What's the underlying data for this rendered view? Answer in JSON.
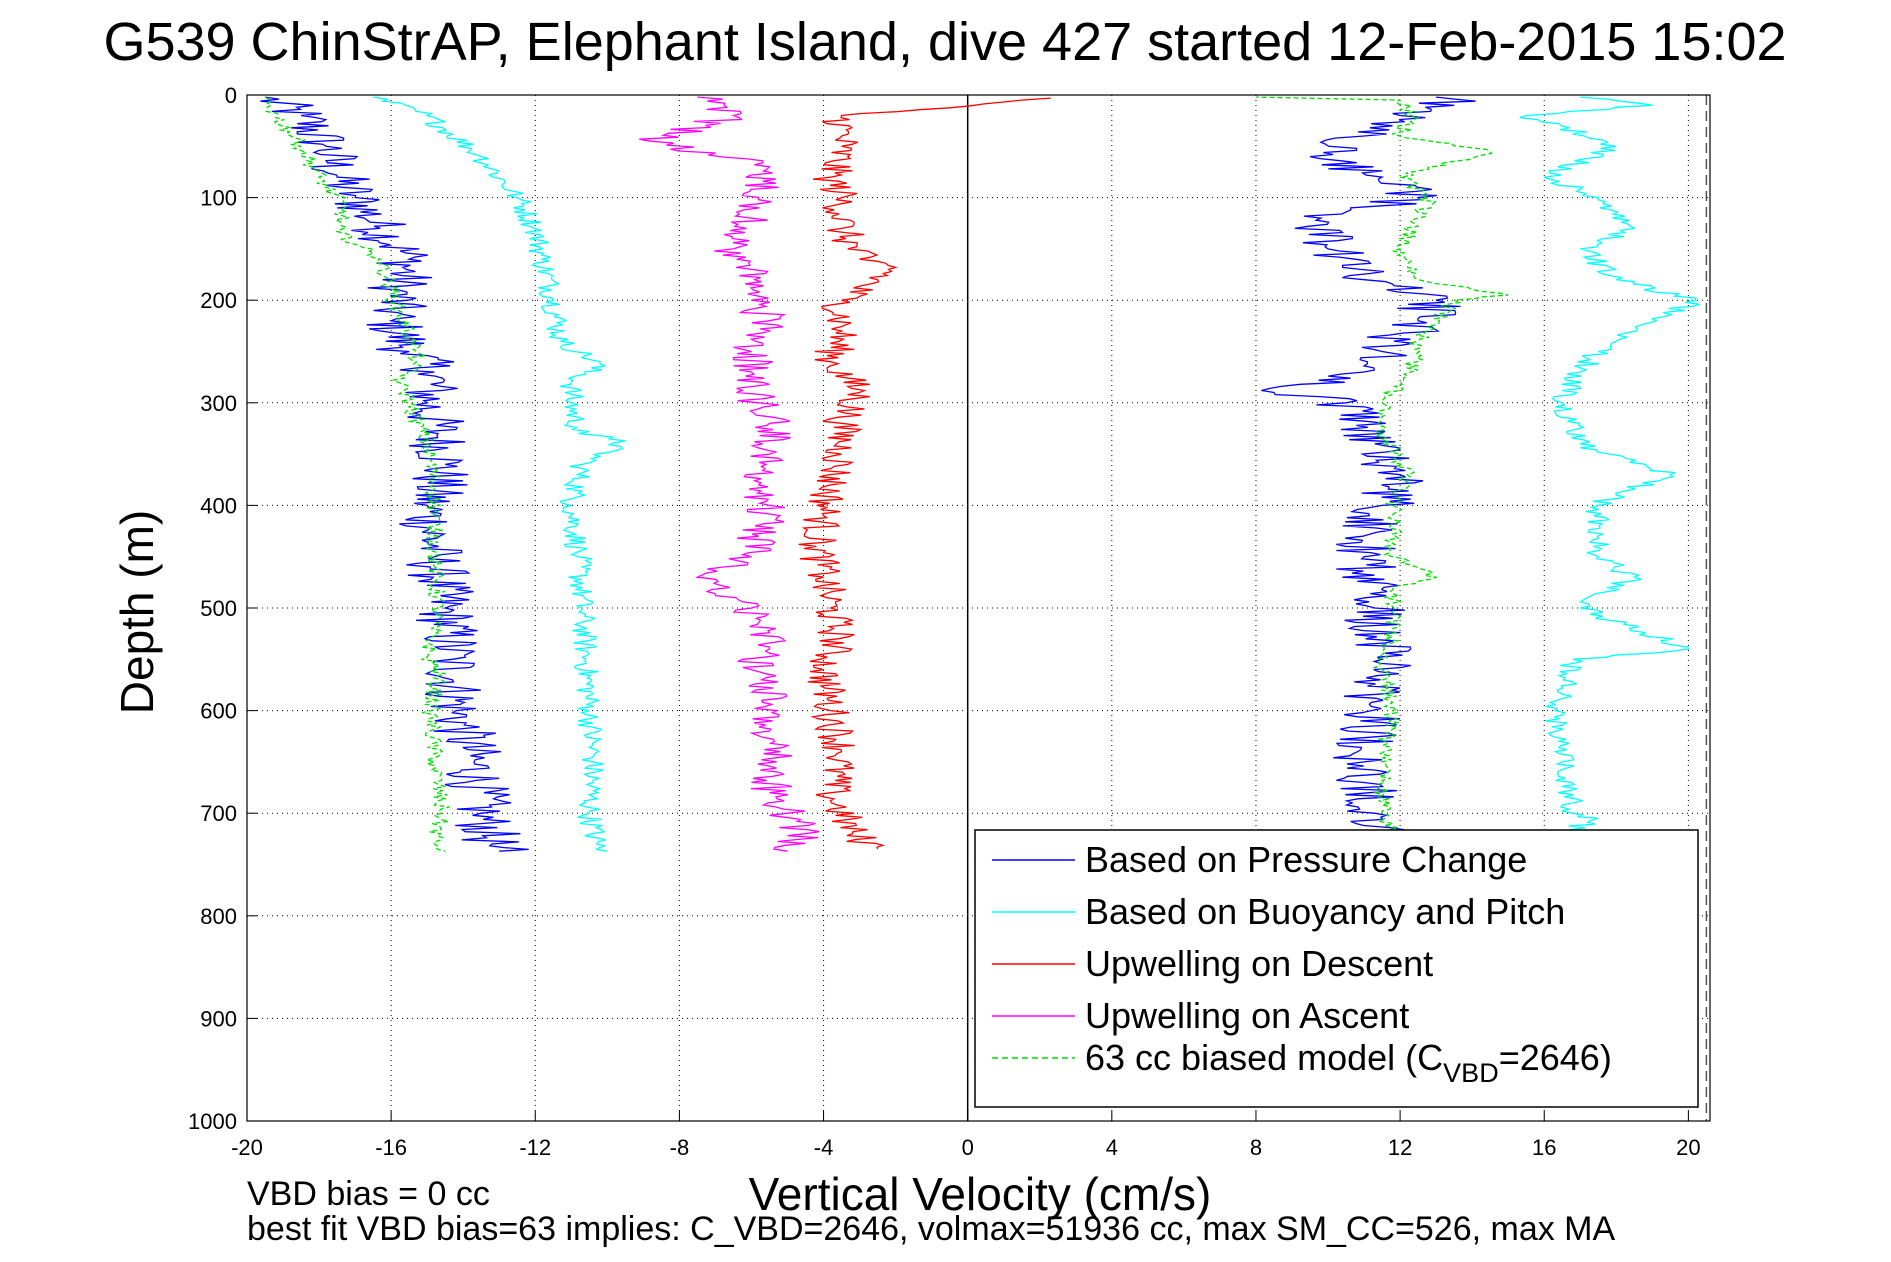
{
  "chart_data": {
    "type": "line",
    "title": "G539 ChinStrAP, Elephant Island, dive 427 started 12-Feb-2015 15:02",
    "xlabel": "Vertical Velocity (cm/s)",
    "ylabel": "Depth (m)",
    "xlim": [
      -20,
      20.6
    ],
    "ylim": [
      0,
      1000
    ],
    "y_reversed": true,
    "xticks": [
      "-20",
      "-16",
      "-12",
      "-8",
      "-4",
      "0",
      "4",
      "8",
      "12",
      "16",
      "20"
    ],
    "yticks": [
      "0",
      "100",
      "200",
      "300",
      "400",
      "500",
      "600",
      "700",
      "800",
      "900",
      "1000"
    ],
    "grid": true,
    "legend_position": "bottom-right",
    "reference_lines": [
      {
        "x": 0,
        "style": "solid"
      },
      {
        "x": 20.5,
        "style": "dashed"
      }
    ],
    "series": [
      {
        "name": "Based on Pressure Change",
        "color": "#0000ff",
        "style": "solid",
        "segments": [
          {
            "depth": [
              2,
              20,
              50,
              80,
              100,
              130,
              160,
              190,
              220,
              250,
              270,
              300,
              330,
              360,
              400,
              450,
              500,
              550,
              600,
              650,
              700,
              730,
              737
            ],
            "x": [
              -19.5,
              -18.5,
              -17.8,
              -17.5,
              -17.0,
              -16.3,
              -15.5,
              -15.8,
              -16.0,
              -15.5,
              -14.8,
              -15.0,
              -14.7,
              -14.5,
              -15.0,
              -14.8,
              -14.5,
              -14.3,
              -14.2,
              -13.7,
              -13.5,
              -13.2,
              -13.0
            ]
          },
          {
            "depth": [
              737,
              720,
              700,
              650,
              600,
              550,
              500,
              450,
              400,
              370,
              340,
              300,
              290,
              270,
              250,
              220,
              200,
              180,
              150,
              120,
              100,
              80,
              60,
              40,
              20,
              10,
              2
            ],
            "x": [
              11.5,
              11.5,
              11.3,
              11.0,
              11.2,
              11.5,
              11.3,
              11.0,
              11.5,
              12.0,
              11.3,
              10.5,
              8.5,
              11.0,
              11.5,
              12.5,
              13.0,
              11.0,
              10.0,
              9.8,
              12.5,
              11.5,
              9.5,
              11.0,
              12.0,
              13.5,
              13.0
            ]
          }
        ]
      },
      {
        "name": "Based on Buoyancy and Pitch",
        "color": "#00ffff",
        "style": "solid",
        "segments": [
          {
            "depth": [
              2,
              20,
              60,
              100,
              130,
              160,
              200,
              240,
              262,
              280,
              300,
              330,
              337,
              360,
              400,
              450,
              500,
              550,
              600,
              650,
              700,
              730,
              737
            ],
            "x": [
              -16.5,
              -15.0,
              -13.5,
              -12.5,
              -12.0,
              -11.8,
              -11.5,
              -11.3,
              -10.2,
              -11.0,
              -11.0,
              -10.8,
              -9.5,
              -10.7,
              -11.0,
              -10.8,
              -10.7,
              -10.6,
              -10.5,
              -10.4,
              -10.5,
              -10.3,
              -10.0
            ]
          },
          {
            "depth": [
              737,
              720,
              705,
              700,
              650,
              600,
              550,
              540,
              500,
              470,
              450,
              400,
              390,
              370,
              340,
              300,
              270,
              250,
              200,
              180,
              150,
              130,
              100,
              80,
              50,
              20,
              10,
              2
            ],
            "x": [
              16.5,
              16.5,
              17.5,
              16.8,
              16.5,
              16.3,
              16.8,
              20.0,
              17.0,
              18.5,
              17.5,
              17.5,
              18.0,
              19.5,
              17.0,
              16.5,
              17.0,
              17.5,
              20.2,
              18.0,
              17.0,
              18.5,
              17.5,
              16.0,
              18.0,
              15.5,
              19.0,
              17.0
            ]
          }
        ]
      },
      {
        "name": "Upwelling on Descent",
        "color": "#ff0000",
        "style": "solid",
        "segments": [
          {
            "depth": [
              3,
              20,
              50,
              80,
              100,
              130,
              160,
              168,
              200,
              230,
              260,
              290,
              320,
              350,
              380,
              410,
              440,
              470,
              500,
              530,
              560,
              600,
              640,
              680,
              720,
              735
            ],
            "x": [
              2.3,
              -3.5,
              -3.5,
              -3.8,
              -3.5,
              -3.5,
              -3.0,
              -2.0,
              -3.5,
              -3.5,
              -3.8,
              -3.0,
              -3.5,
              -3.5,
              -3.8,
              -4.0,
              -4.2,
              -4.0,
              -3.8,
              -3.6,
              -4.0,
              -3.8,
              -3.5,
              -3.8,
              -3.2,
              -2.5
            ]
          }
        ]
      },
      {
        "name": "Upwelling on Ascent",
        "color": "#ff00ff",
        "style": "solid",
        "segments": [
          {
            "depth": [
              737,
              720,
              700,
              680,
              650,
              620,
              600,
              560,
              540,
              500,
              470,
              450,
              400,
              380,
              350,
              320,
              300,
              270,
              250,
              220,
              200,
              170,
              150,
              120,
              100,
              70,
              45,
              20,
              2
            ],
            "x": [
              -5.0,
              -4.5,
              -5.0,
              -5.5,
              -5.3,
              -5.5,
              -5.3,
              -6.0,
              -5.5,
              -6.0,
              -7.5,
              -6.0,
              -5.5,
              -5.8,
              -5.5,
              -5.5,
              -5.8,
              -6.0,
              -6.0,
              -5.5,
              -6.0,
              -6.0,
              -6.5,
              -6.0,
              -5.8,
              -5.5,
              -8.8,
              -6.5,
              -7.5
            ]
          }
        ]
      },
      {
        "name": "63 cc biased model (C_VBD=2646)",
        "color": "#00dd00",
        "style": "dashed",
        "segments": [
          {
            "depth": [
              2,
              20,
              50,
              80,
              110,
              133,
              160,
              190,
              210,
              250,
              260,
              280,
              295,
              300,
              340,
              380,
              420,
              460,
              500,
              548,
              560,
              600,
              650,
              700,
              730,
              737
            ],
            "x": [
              -19.5,
              -19.2,
              -18.5,
              -18.0,
              -17.3,
              -17.5,
              -16.3,
              -16.0,
              -15.8,
              -15.3,
              -15.3,
              -15.8,
              -15.5,
              -15.5,
              -15.0,
              -14.8,
              -14.8,
              -14.8,
              -14.7,
              -15.0,
              -14.7,
              -14.9,
              -14.8,
              -14.6,
              -14.8,
              -14.5
            ]
          },
          {
            "depth": [
              737,
              720,
              700,
              650,
              600,
              560,
              520,
              480,
              470,
              450,
              400,
              370,
              330,
              300,
              270,
              240,
              200,
              195,
              180,
              150,
              120,
              100,
              80,
              55,
              40,
              20,
              5,
              2
            ],
            "x": [
              11.5,
              11.8,
              11.5,
              11.5,
              11.8,
              11.5,
              11.8,
              11.8,
              13.0,
              11.8,
              11.8,
              12.2,
              11.5,
              11.5,
              12.3,
              12.5,
              13.5,
              15.0,
              12.5,
              12.0,
              12.5,
              12.8,
              12.0,
              14.5,
              12.0,
              12.3,
              12.0,
              8.0
            ]
          }
        ]
      }
    ],
    "legend": {
      "entries": [
        {
          "label": "Based on Pressure Change",
          "color": "#0000ff",
          "style": "solid"
        },
        {
          "label": "Based on Buoyancy and Pitch",
          "color": "#00ffff",
          "style": "solid"
        },
        {
          "label": "Upwelling on Descent",
          "color": "#ff0000",
          "style": "solid"
        },
        {
          "label": "Upwelling on Ascent",
          "color": "#ff00ff",
          "style": "solid"
        },
        {
          "label_main": "63 cc biased model (C",
          "label_sub": "VBD",
          "label_tail": "=2646)",
          "color": "#00dd00",
          "style": "dashed"
        }
      ]
    },
    "annotations": [
      "VBD bias = 0 cc",
      "best fit VBD bias=63 implies: C_VBD=2646, volmax=51936 cc, max SM_CC=526, max MA"
    ]
  }
}
